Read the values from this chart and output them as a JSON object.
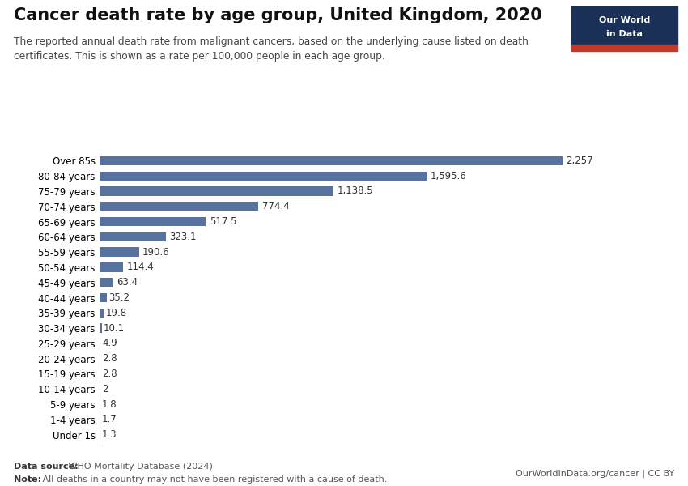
{
  "title": "Cancer death rate by age group, United Kingdom, 2020",
  "subtitle": "The reported annual death rate from malignant cancers, based on the underlying cause listed on death\ncertificates. This is shown as a rate per 100,000 people in each age group.",
  "categories": [
    "Under 1s",
    "1-4 years",
    "5-9 years",
    "10-14 years",
    "15-19 years",
    "20-24 years",
    "25-29 years",
    "30-34 years",
    "35-39 years",
    "40-44 years",
    "45-49 years",
    "50-54 years",
    "55-59 years",
    "60-64 years",
    "65-69 years",
    "70-74 years",
    "75-79 years",
    "80-84 years",
    "Over 85s"
  ],
  "values": [
    1.3,
    1.7,
    1.8,
    2.0,
    2.8,
    2.8,
    4.9,
    10.1,
    19.8,
    35.2,
    63.4,
    114.4,
    190.6,
    323.1,
    517.5,
    774.4,
    1138.5,
    1595.6,
    2257.0
  ],
  "bar_color": "#5872a0",
  "background_color": "#FFFFFF",
  "data_source_bold": "Data source:",
  "data_source_rest": " WHO Mortality Database (2024)",
  "note_bold": "Note:",
  "note_rest": " All deaths in a country may not have been registered with a cause of death.",
  "right_footer": "OurWorldInData.org/cancer | CC BY",
  "logo_bg": "#1a3057",
  "logo_red": "#c0392b",
  "value_labels": [
    "1.3",
    "1.7",
    "1.8",
    "2",
    "2.8",
    "2.8",
    "4.9",
    "10.1",
    "19.8",
    "35.2",
    "63.4",
    "114.4",
    "190.6",
    "323.1",
    "517.5",
    "774.4",
    "1,138.5",
    "1,595.6",
    "2,257"
  ],
  "xlim_max": 2550,
  "bar_height": 0.6
}
